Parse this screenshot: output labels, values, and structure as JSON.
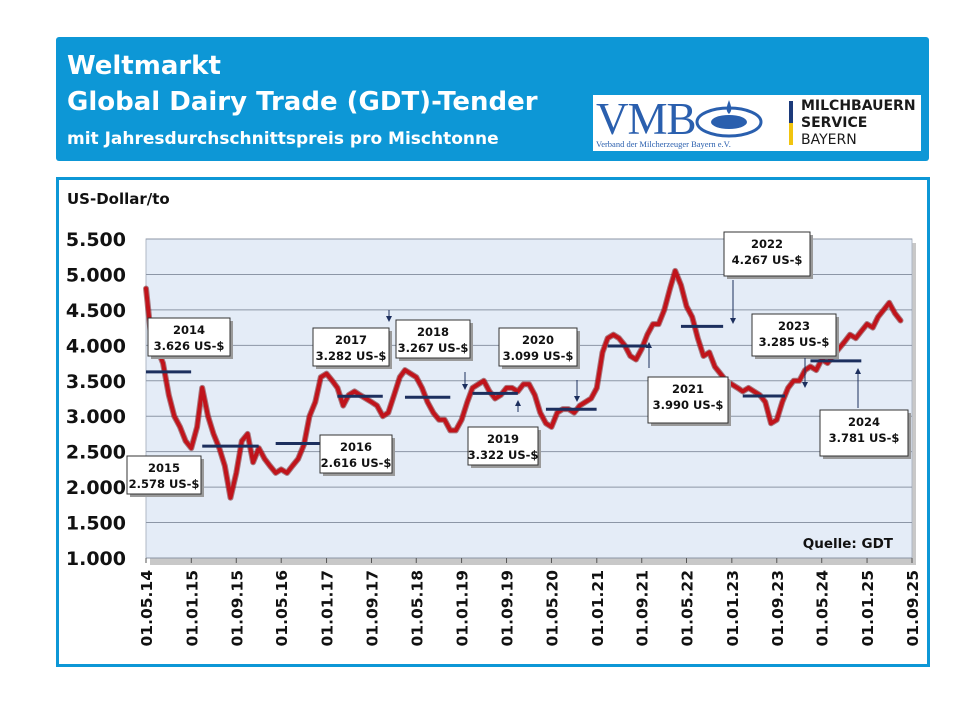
{
  "header": {
    "line1": "Weltmarkt",
    "line2": "Global Dairy Trade (GDT)-Tender",
    "line3": "mit Jahresdurchschnittspreis pro Mischtonne"
  },
  "logo": {
    "vmb": "VMB",
    "vmb_subtitle": "Verband der Milcherzeuger Bayern e.V.",
    "msb_line1": "MILCHBAUERN",
    "msb_line2": "SERVICE",
    "msb_line3": "BAYERN"
  },
  "colors": {
    "header_bg": "#0d97d6",
    "line": "#c0141b",
    "avg": "#1c2f5e",
    "plot_bg": "#e4ecf7"
  },
  "chart_data": {
    "type": "line",
    "ylabel": "US-Dollar/to",
    "source": "Quelle: GDT",
    "ylim": [
      1000,
      5500
    ],
    "yticks": [
      1000,
      1500,
      2000,
      2500,
      3000,
      3500,
      4000,
      4500,
      5000,
      5500
    ],
    "ytick_labels": [
      "1.000",
      "1.500",
      "2.000",
      "2.500",
      "3.000",
      "3.500",
      "4.000",
      "4.500",
      "5.000",
      "5.500"
    ],
    "xlim": [
      "2014-05-01",
      "2025-09-01"
    ],
    "xticks": [
      "2014-05-01",
      "2015-01-01",
      "2015-09-01",
      "2016-05-01",
      "2017-01-01",
      "2017-09-01",
      "2018-05-01",
      "2019-01-01",
      "2019-09-01",
      "2020-05-01",
      "2021-01-01",
      "2021-09-01",
      "2022-05-01",
      "2023-01-01",
      "2023-09-01",
      "2024-05-01",
      "2025-01-01",
      "2025-09-01"
    ],
    "xtick_labels": [
      "01.05.14",
      "01.01.15",
      "01.09.15",
      "01.05.16",
      "01.01.17",
      "01.09.17",
      "01.05.18",
      "01.01.19",
      "01.09.19",
      "01.05.20",
      "01.01.21",
      "01.09.21",
      "01.05.22",
      "01.01.23",
      "01.09.23",
      "01.05.24",
      "01.01.25",
      "01.09.25"
    ],
    "series": [
      {
        "points": [
          [
            "2014-05-01",
            4800
          ],
          [
            "2014-06-01",
            4050
          ],
          [
            "2014-07-01",
            3950
          ],
          [
            "2014-08-01",
            3750
          ],
          [
            "2014-09-01",
            3300
          ],
          [
            "2014-10-01",
            3000
          ],
          [
            "2014-11-01",
            2850
          ],
          [
            "2014-12-01",
            2650
          ],
          [
            "2015-01-01",
            2550
          ],
          [
            "2015-02-01",
            2850
          ],
          [
            "2015-03-01",
            3400
          ],
          [
            "2015-04-01",
            3000
          ],
          [
            "2015-05-01",
            2750
          ],
          [
            "2015-06-01",
            2550
          ],
          [
            "2015-07-01",
            2300
          ],
          [
            "2015-08-01",
            1850
          ],
          [
            "2015-09-01",
            2200
          ],
          [
            "2015-10-01",
            2650
          ],
          [
            "2015-11-01",
            2750
          ],
          [
            "2015-12-01",
            2350
          ],
          [
            "2016-01-01",
            2550
          ],
          [
            "2016-02-01",
            2400
          ],
          [
            "2016-03-01",
            2300
          ],
          [
            "2016-04-01",
            2200
          ],
          [
            "2016-05-01",
            2250
          ],
          [
            "2016-06-01",
            2200
          ],
          [
            "2016-07-01",
            2300
          ],
          [
            "2016-08-01",
            2400
          ],
          [
            "2016-09-01",
            2600
          ],
          [
            "2016-10-01",
            3000
          ],
          [
            "2016-11-01",
            3200
          ],
          [
            "2016-12-01",
            3550
          ],
          [
            "2017-01-01",
            3600
          ],
          [
            "2017-02-01",
            3500
          ],
          [
            "2017-03-01",
            3400
          ],
          [
            "2017-04-01",
            3150
          ],
          [
            "2017-05-01",
            3300
          ],
          [
            "2017-06-01",
            3350
          ],
          [
            "2017-07-01",
            3300
          ],
          [
            "2017-08-01",
            3250
          ],
          [
            "2017-09-01",
            3200
          ],
          [
            "2017-10-01",
            3150
          ],
          [
            "2017-11-01",
            3000
          ],
          [
            "2017-12-01",
            3050
          ],
          [
            "2018-01-01",
            3300
          ],
          [
            "2018-02-01",
            3550
          ],
          [
            "2018-03-01",
            3650
          ],
          [
            "2018-04-01",
            3600
          ],
          [
            "2018-05-01",
            3550
          ],
          [
            "2018-06-01",
            3400
          ],
          [
            "2018-07-01",
            3200
          ],
          [
            "2018-08-01",
            3050
          ],
          [
            "2018-09-01",
            2950
          ],
          [
            "2018-10-01",
            2950
          ],
          [
            "2018-11-01",
            2800
          ],
          [
            "2018-12-01",
            2800
          ],
          [
            "2019-01-01",
            2950
          ],
          [
            "2019-02-01",
            3200
          ],
          [
            "2019-03-01",
            3400
          ],
          [
            "2019-04-01",
            3450
          ],
          [
            "2019-05-01",
            3500
          ],
          [
            "2019-06-01",
            3350
          ],
          [
            "2019-07-01",
            3250
          ],
          [
            "2019-08-01",
            3300
          ],
          [
            "2019-09-01",
            3400
          ],
          [
            "2019-10-01",
            3400
          ],
          [
            "2019-11-01",
            3350
          ],
          [
            "2019-12-01",
            3450
          ],
          [
            "2020-01-01",
            3450
          ],
          [
            "2020-02-01",
            3300
          ],
          [
            "2020-03-01",
            3050
          ],
          [
            "2020-04-01",
            2900
          ],
          [
            "2020-05-01",
            2850
          ],
          [
            "2020-06-01",
            3050
          ],
          [
            "2020-07-01",
            3100
          ],
          [
            "2020-08-01",
            3100
          ],
          [
            "2020-09-01",
            3050
          ],
          [
            "2020-10-01",
            3150
          ],
          [
            "2020-11-01",
            3200
          ],
          [
            "2020-12-01",
            3250
          ],
          [
            "2021-01-01",
            3400
          ],
          [
            "2021-02-01",
            3900
          ],
          [
            "2021-03-01",
            4100
          ],
          [
            "2021-04-01",
            4150
          ],
          [
            "2021-05-01",
            4100
          ],
          [
            "2021-06-01",
            4000
          ],
          [
            "2021-07-01",
            3850
          ],
          [
            "2021-08-01",
            3800
          ],
          [
            "2021-09-01",
            3950
          ],
          [
            "2021-10-01",
            4150
          ],
          [
            "2021-11-01",
            4300
          ],
          [
            "2021-12-01",
            4300
          ],
          [
            "2022-01-01",
            4500
          ],
          [
            "2022-02-01",
            4800
          ],
          [
            "2022-03-01",
            5050
          ],
          [
            "2022-04-01",
            4850
          ],
          [
            "2022-05-01",
            4550
          ],
          [
            "2022-06-01",
            4400
          ],
          [
            "2022-07-01",
            4100
          ],
          [
            "2022-08-01",
            3850
          ],
          [
            "2022-09-01",
            3900
          ],
          [
            "2022-10-01",
            3700
          ],
          [
            "2022-11-01",
            3600
          ],
          [
            "2022-12-01",
            3500
          ],
          [
            "2023-01-01",
            3450
          ],
          [
            "2023-02-01",
            3400
          ],
          [
            "2023-03-01",
            3350
          ],
          [
            "2023-04-01",
            3400
          ],
          [
            "2023-05-01",
            3350
          ],
          [
            "2023-06-01",
            3300
          ],
          [
            "2023-07-01",
            3200
          ],
          [
            "2023-08-01",
            2900
          ],
          [
            "2023-09-01",
            2950
          ],
          [
            "2023-10-01",
            3200
          ],
          [
            "2023-11-01",
            3400
          ],
          [
            "2023-12-01",
            3500
          ],
          [
            "2024-01-01",
            3500
          ],
          [
            "2024-02-01",
            3650
          ],
          [
            "2024-03-01",
            3700
          ],
          [
            "2024-04-01",
            3650
          ],
          [
            "2024-05-01",
            3800
          ],
          [
            "2024-06-01",
            3750
          ],
          [
            "2024-07-01",
            3850
          ],
          [
            "2024-08-01",
            3950
          ],
          [
            "2024-09-01",
            4050
          ],
          [
            "2024-10-01",
            4150
          ],
          [
            "2024-11-01",
            4100
          ],
          [
            "2024-12-01",
            4200
          ],
          [
            "2025-01-01",
            4300
          ],
          [
            "2025-02-01",
            4250
          ],
          [
            "2025-03-01",
            4400
          ],
          [
            "2025-04-01",
            4500
          ],
          [
            "2025-05-01",
            4600
          ],
          [
            "2025-06-01",
            4450
          ],
          [
            "2025-07-01",
            4350
          ]
        ]
      }
    ],
    "annual_averages": [
      {
        "year": "2014",
        "value": 3626,
        "label": "3.626 US-$",
        "start": "2014-05-01",
        "end": "2014-12-31"
      },
      {
        "year": "2015",
        "value": 2578,
        "label": "2.578 US-$",
        "start": "2015-03-01",
        "end": "2015-12-31"
      },
      {
        "year": "2016",
        "value": 2616,
        "label": "2.616 US-$",
        "start": "2016-04-01",
        "end": "2016-12-31"
      },
      {
        "year": "2017",
        "value": 3282,
        "label": "3.282 US-$",
        "start": "2017-03-01",
        "end": "2017-11-01"
      },
      {
        "year": "2018",
        "value": 3267,
        "label": "3.267 US-$",
        "start": "2018-03-01",
        "end": "2018-11-01"
      },
      {
        "year": "2019",
        "value": 3322,
        "label": "3.322 US-$",
        "start": "2019-03-01",
        "end": "2019-11-01"
      },
      {
        "year": "2020",
        "value": 3099,
        "label": "3.099 US-$",
        "start": "2020-04-01",
        "end": "2020-12-31"
      },
      {
        "year": "2021",
        "value": 3990,
        "label": "3.990 US-$",
        "start": "2021-03-01",
        "end": "2021-10-01"
      },
      {
        "year": "2022",
        "value": 4267,
        "label": "4.267 US-$",
        "start": "2022-04-01",
        "end": "2022-11-15"
      },
      {
        "year": "2023",
        "value": 3285,
        "label": "3.285 US-$",
        "start": "2023-03-01",
        "end": "2023-10-15"
      },
      {
        "year": "2024",
        "value": 3781,
        "label": "3.781 US-$",
        "start": "2024-03-01",
        "end": "2024-12-01"
      }
    ]
  }
}
